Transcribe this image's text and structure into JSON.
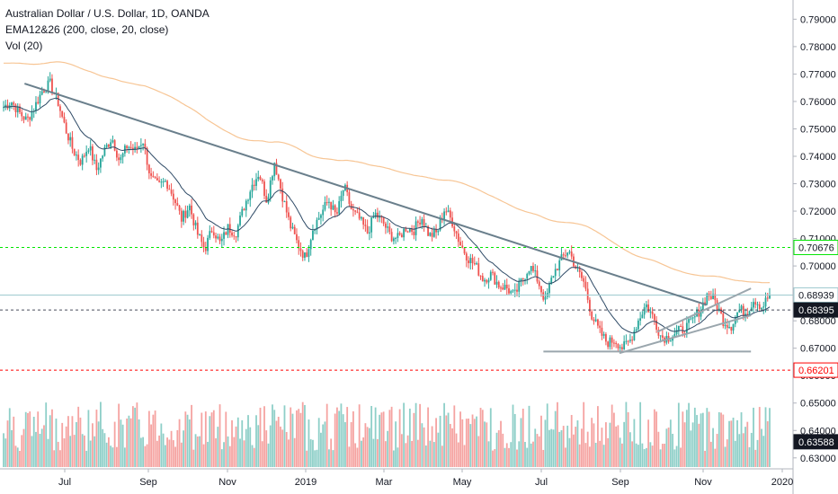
{
  "legend": {
    "title": "Australian Dollar / U.S. Dollar, 1D, OANDA",
    "ema": "EMA12&26 (200, close, 20, close)",
    "volume": "Vol (20)"
  },
  "chart_data": {
    "type": "candlestick",
    "instrument": "Australian Dollar / U.S. Dollar",
    "timeframe": "1D",
    "x_labels": [
      "Jul",
      "Sep",
      "Nov",
      "2019",
      "Mar",
      "May",
      "Jul",
      "Sep",
      "Nov",
      "2020"
    ],
    "y_ticks": [
      "0.79000",
      "0.78000",
      "0.77000",
      "0.76000",
      "0.75000",
      "0.74000",
      "0.73000",
      "0.72000",
      "0.71000",
      "0.70000",
      "0.69000",
      "0.68000",
      "0.67000",
      "0.66000",
      "0.65000",
      "0.64000",
      "0.63000"
    ],
    "y_tick_values": [
      0.79,
      0.78,
      0.77,
      0.76,
      0.75,
      0.74,
      0.73,
      0.72,
      0.71,
      0.7,
      0.69,
      0.68,
      0.67,
      0.66,
      0.65,
      0.64,
      0.63
    ],
    "ylim": [
      0.626,
      0.797
    ],
    "price_tags": [
      {
        "label": "0.70676",
        "value": 0.70676,
        "bg": "#ffffff",
        "fg": "#131722",
        "border": "#00e600"
      },
      {
        "label": "0.68939",
        "value": 0.68939,
        "bg": "#ffffff",
        "fg": "#131722",
        "border": "#9fcad0"
      },
      {
        "label": "0.68395",
        "value": 0.68395,
        "bg": "#131722",
        "fg": "#ffffff",
        "border": "#131722"
      },
      {
        "label": "0.66201",
        "value": 0.66201,
        "bg": "#ffffff",
        "fg": "#ff0000",
        "border": "#ff0000"
      },
      {
        "label": "0.63588",
        "value": 0.63588,
        "bg": "#131722",
        "fg": "#ffffff",
        "border": "#131722"
      }
    ],
    "key_prices": [
      0.758,
      0.76,
      0.756,
      0.753,
      0.758,
      0.764,
      0.7665,
      0.76,
      0.75,
      0.742,
      0.738,
      0.744,
      0.735,
      0.742,
      0.747,
      0.738,
      0.744,
      0.742,
      0.746,
      0.732,
      0.729,
      0.731,
      0.725,
      0.717,
      0.722,
      0.712,
      0.706,
      0.714,
      0.708,
      0.714,
      0.712,
      0.721,
      0.729,
      0.734,
      0.724,
      0.738,
      0.726,
      0.715,
      0.708,
      0.703,
      0.714,
      0.719,
      0.724,
      0.718,
      0.729,
      0.72,
      0.717,
      0.712,
      0.719,
      0.716,
      0.711,
      0.71,
      0.714,
      0.713,
      0.718,
      0.711,
      0.712,
      0.721,
      0.716,
      0.708,
      0.703,
      0.7,
      0.695,
      0.697,
      0.693,
      0.692,
      0.689,
      0.695,
      0.7,
      0.695,
      0.687,
      0.697,
      0.702,
      0.706,
      0.699,
      0.694,
      0.682,
      0.676,
      0.672,
      0.673,
      0.67,
      0.673,
      0.68,
      0.686,
      0.681,
      0.674,
      0.674,
      0.676,
      0.677,
      0.68,
      0.684,
      0.69,
      0.687,
      0.68,
      0.678,
      0.684,
      0.683,
      0.688,
      0.685,
      0.6895
    ],
    "lines": [
      {
        "name": "descending-trendline",
        "from": [
          0.031,
          0.7665
        ],
        "to": [
          0.892,
          0.6858
        ],
        "color": "#6a7f8c"
      },
      {
        "name": "ascending-support-line",
        "from": [
          0.782,
          0.6682
        ],
        "to": [
          0.948,
          0.682
        ],
        "color": "#9aa6ad"
      },
      {
        "name": "horizontal-support-line",
        "from": [
          0.686,
          0.6688
        ],
        "to": [
          0.948,
          0.6688
        ],
        "color": "#9aa6ad"
      },
      {
        "name": "upper-channel-line",
        "from": [
          0.83,
          0.676
        ],
        "to": [
          0.948,
          0.6918
        ],
        "color": "#9aa6ad"
      }
    ],
    "horizontal_levels": [
      {
        "name": "green-level",
        "value": 0.70676,
        "color": "#00e600"
      },
      {
        "name": "last-price-level",
        "value": 0.68939,
        "color": "#9fcad0"
      },
      {
        "name": "dark-level",
        "value": 0.68395,
        "color": "#4a4f5c"
      },
      {
        "name": "red-level",
        "value": 0.66201,
        "color": "#ff0000"
      }
    ],
    "colors": {
      "up": "#26a69a",
      "down": "#ef5350",
      "ema_fast": "#2e4a66",
      "ema_slow": "#f5b679",
      "vol_up": "#8ecfc8",
      "vol_down": "#f5a3a1"
    }
  }
}
